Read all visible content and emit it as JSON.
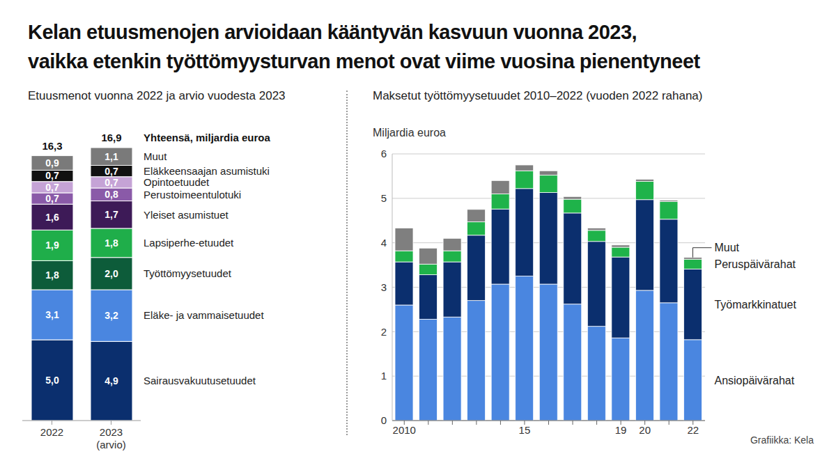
{
  "title": "Kelan etuusmenojen arvioidaan kääntyvän kasvuun vuonna 2023, vaikka etenkin työttömyysturvan menot ovat viime vuosina pienentyneet",
  "source": "Grafiikka: Kela",
  "chart_data": [
    {
      "type": "bar",
      "title": "Etuusmenot vuonna 2022 ja arvio vuodesta 2023",
      "stacked": true,
      "data_labels": true,
      "tick_labels": "x",
      "categories": [
        "2022",
        "2023 (arvio)"
      ],
      "totals": {
        "label": "Yhteensä, miljardia euroa",
        "values": [
          16.3,
          16.9
        ],
        "value_labels": [
          "16,3",
          "16,9"
        ]
      },
      "series": [
        {
          "name": "Sairausvakuutusetuudet",
          "color": "#0b2f6e",
          "values": [
            5.0,
            4.9
          ],
          "value_labels": [
            "5,0",
            "4,9"
          ]
        },
        {
          "name": "Eläke- ja vammaisetuudet",
          "color": "#4a86e0",
          "values": [
            3.1,
            3.2
          ],
          "value_labels": [
            "3,1",
            "3,2"
          ]
        },
        {
          "name": "Työttömyysetuudet",
          "color": "#0d5c3a",
          "values": [
            1.8,
            2.0
          ],
          "value_labels": [
            "1,8",
            "2,0"
          ]
        },
        {
          "name": "Lapsiperhe-etuudet",
          "color": "#1fae4a",
          "values": [
            1.9,
            1.8
          ],
          "value_labels": [
            "1,9",
            "1,8"
          ]
        },
        {
          "name": "Yleiset asumistuet",
          "color": "#3d1a57",
          "values": [
            1.6,
            1.7
          ],
          "value_labels": [
            "1,6",
            "1,7"
          ]
        },
        {
          "name": "Perustoimeentulotuki",
          "color": "#8a5aa8",
          "values": [
            0.7,
            0.8
          ],
          "value_labels": [
            "0,7",
            "0,8"
          ]
        },
        {
          "name": "Opintoetuudet",
          "color": "#c5a3d6",
          "values": [
            0.7,
            0.7
          ],
          "value_labels": [
            "0,7",
            "0,7"
          ]
        },
        {
          "name": "Eläkkeensaajan asumistuki",
          "color": "#111111",
          "values": [
            0.7,
            0.7
          ],
          "value_labels": [
            "0,7",
            "0,7"
          ]
        },
        {
          "name": "Muut",
          "color": "#7a7a7a",
          "values": [
            0.9,
            1.1
          ],
          "value_labels": [
            "0,9",
            "1,1"
          ]
        }
      ]
    },
    {
      "type": "bar",
      "title": "Maksetut työttömyysetuudet 2010–2022 (vuoden 2022 rahana)",
      "y_label": "Miljardia euroa",
      "stacked": true,
      "grid": true,
      "categories": [
        "2010",
        null,
        null,
        null,
        null,
        "15",
        null,
        null,
        null,
        "19",
        "20",
        null,
        "22"
      ],
      "ylim": [
        0,
        6
      ],
      "yticks": [
        0,
        1,
        2,
        3,
        4,
        5,
        6
      ],
      "series": [
        {
          "name": "Ansiopäivärahat",
          "color": "#4a86e0",
          "values": [
            2.6,
            2.28,
            2.33,
            2.7,
            3.07,
            3.25,
            3.07,
            2.62,
            2.12,
            1.86,
            2.93,
            2.65,
            1.82
          ]
        },
        {
          "name": "Työmarkkinatuet",
          "color": "#0b2f6e",
          "values": [
            0.97,
            1.0,
            1.24,
            1.47,
            1.69,
            1.97,
            2.06,
            2.05,
            1.91,
            1.82,
            2.04,
            1.88,
            1.59
          ]
        },
        {
          "name": "Peruspäivärahat",
          "color": "#1fb34a",
          "values": [
            0.25,
            0.24,
            0.25,
            0.3,
            0.34,
            0.4,
            0.39,
            0.31,
            0.25,
            0.22,
            0.41,
            0.4,
            0.22
          ]
        },
        {
          "name": "Muut",
          "color": "#7f7f7f",
          "values": [
            0.51,
            0.36,
            0.28,
            0.28,
            0.3,
            0.13,
            0.1,
            0.06,
            0.05,
            0.05,
            0.05,
            0.03,
            0.04
          ]
        }
      ]
    }
  ]
}
